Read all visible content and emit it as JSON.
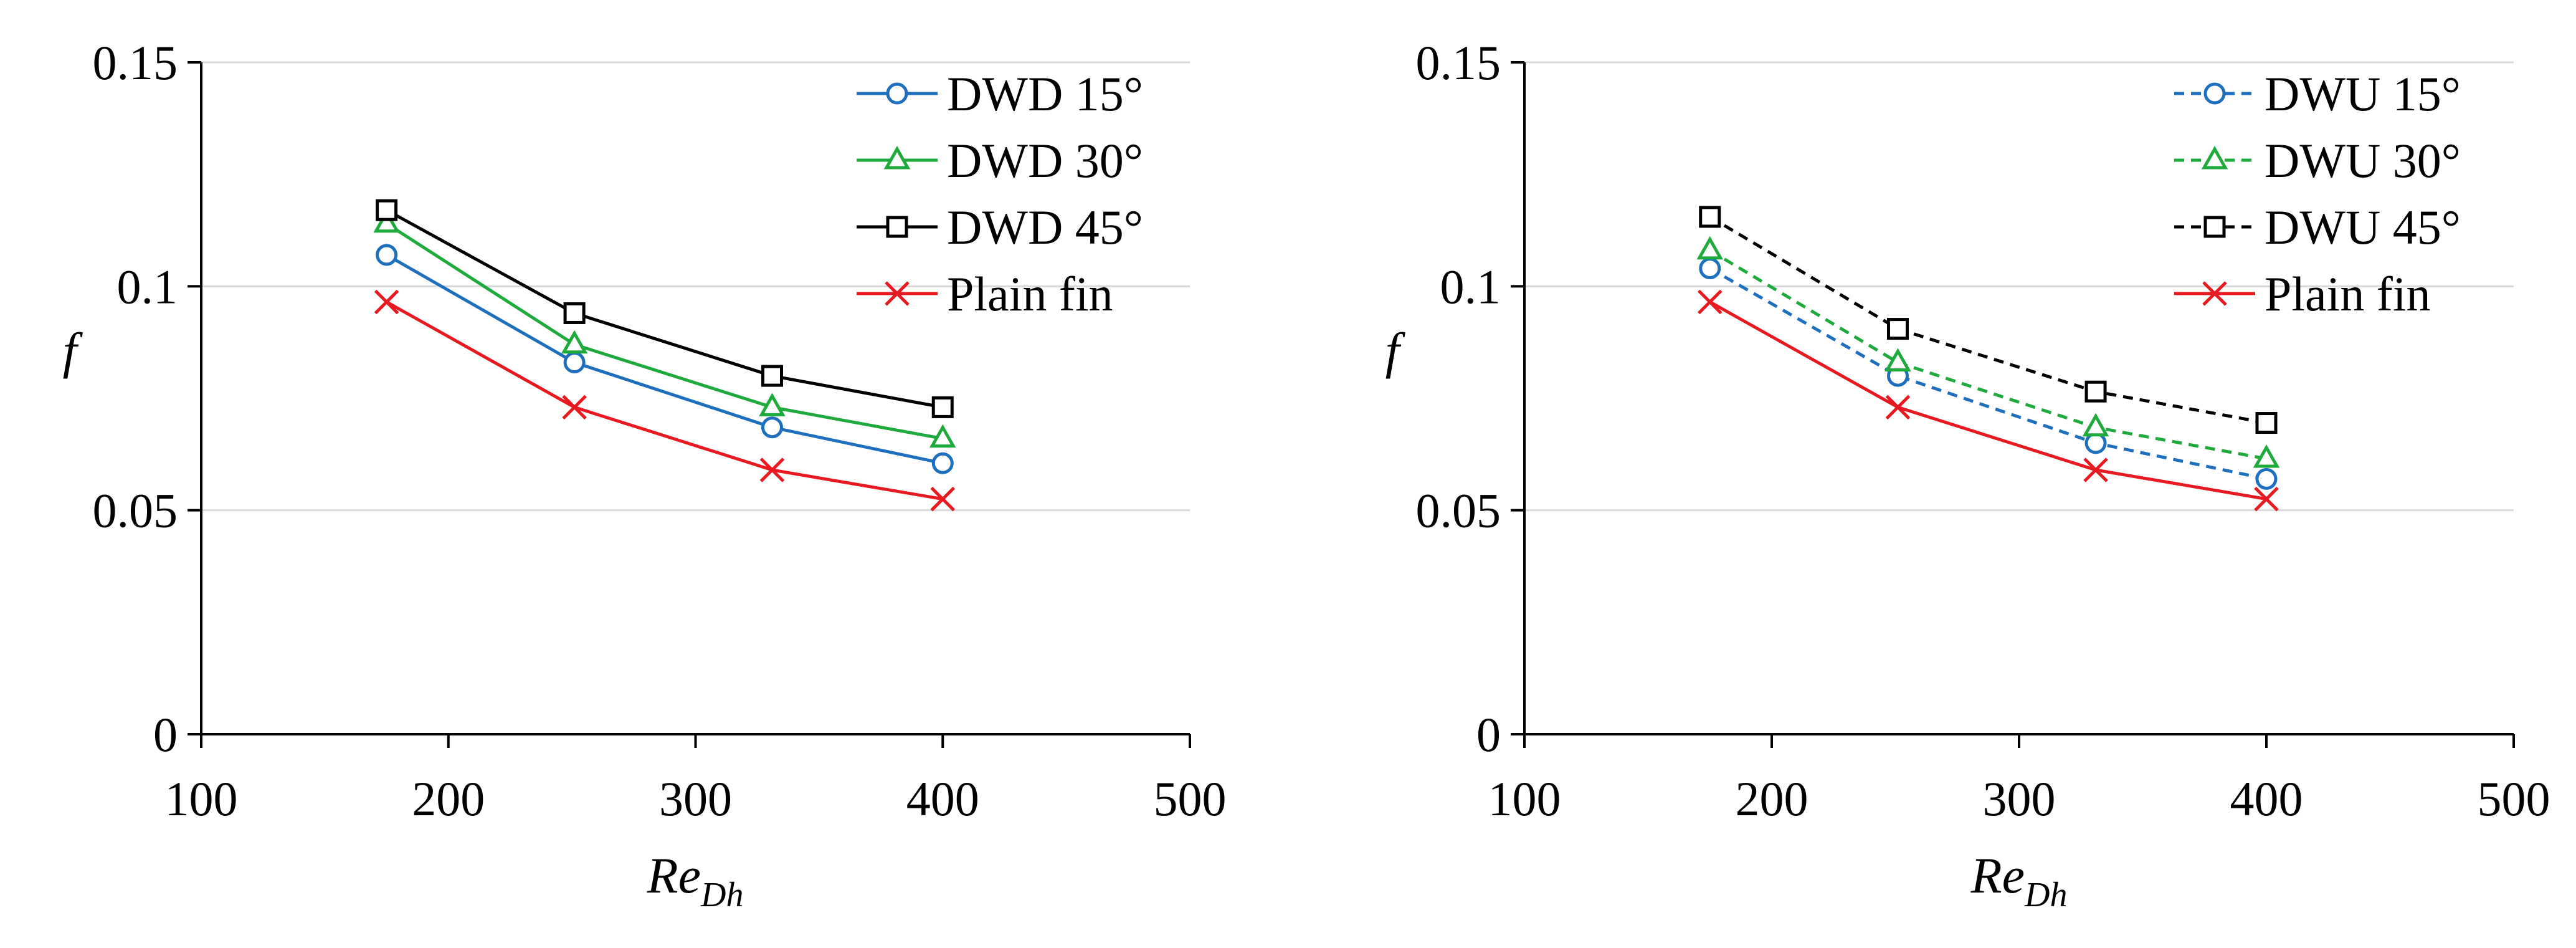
{
  "chart_data": [
    {
      "type": "line",
      "title": "",
      "xlabel": {
        "main": "Re",
        "sub": "Dh"
      },
      "ylabel": "f",
      "xlim": [
        100,
        500
      ],
      "ylim": [
        0,
        0.15
      ],
      "xticks": [
        100,
        200,
        300,
        400,
        500
      ],
      "yticks": [
        0,
        0.05,
        0.1,
        0.15
      ],
      "xtick_labels": [
        "100",
        "200",
        "300",
        "400",
        "500"
      ],
      "ytick_labels": [
        "0",
        "0.05",
        "0.1",
        "0.15"
      ],
      "grid": "horizontal",
      "legend_position": "top-right",
      "x": [
        175,
        251,
        331,
        400
      ],
      "series": [
        {
          "name": "DWD 15°",
          "color": "#1f6fbf",
          "dash": "solid",
          "marker": "circle",
          "values": [
            0.107,
            0.083,
            0.0685,
            0.0605
          ]
        },
        {
          "name": "DWD 30°",
          "color": "#1faa3c",
          "dash": "solid",
          "marker": "triangle",
          "values": [
            0.114,
            0.087,
            0.073,
            0.066
          ]
        },
        {
          "name": "DWD 45°",
          "color": "#000000",
          "dash": "solid",
          "marker": "square",
          "values": [
            0.117,
            0.094,
            0.08,
            0.073
          ]
        },
        {
          "name": "Plain fin",
          "color": "#e8191f",
          "dash": "solid",
          "marker": "x",
          "values": [
            0.0965,
            0.073,
            0.059,
            0.0525
          ]
        }
      ]
    },
    {
      "type": "line",
      "title": "",
      "xlabel": {
        "main": "Re",
        "sub": "Dh"
      },
      "ylabel": "f",
      "xlim": [
        100,
        500
      ],
      "ylim": [
        0,
        0.15
      ],
      "xticks": [
        100,
        200,
        300,
        400,
        500
      ],
      "yticks": [
        0,
        0.05,
        0.1,
        0.15
      ],
      "xtick_labels": [
        "100",
        "200",
        "300",
        "400",
        "500"
      ],
      "ytick_labels": [
        "0",
        "0.05",
        "0.1",
        "0.15"
      ],
      "grid": "horizontal",
      "legend_position": "top-right",
      "x": [
        175,
        251,
        331,
        400
      ],
      "series": [
        {
          "name": "DWU 15°",
          "color": "#1f6fbf",
          "dash": "dashed",
          "marker": "circle",
          "values": [
            0.104,
            0.08,
            0.065,
            0.057
          ]
        },
        {
          "name": "DWU 30°",
          "color": "#1faa3c",
          "dash": "dashed",
          "marker": "triangle",
          "values": [
            0.108,
            0.083,
            0.0685,
            0.0615
          ]
        },
        {
          "name": "DWU 45°",
          "color": "#000000",
          "dash": "dashed",
          "marker": "square",
          "values": [
            0.1155,
            0.0905,
            0.0765,
            0.0695
          ]
        },
        {
          "name": "Plain fin",
          "color": "#e8191f",
          "dash": "solid",
          "marker": "x",
          "values": [
            0.0965,
            0.073,
            0.059,
            0.0525
          ]
        }
      ]
    }
  ]
}
